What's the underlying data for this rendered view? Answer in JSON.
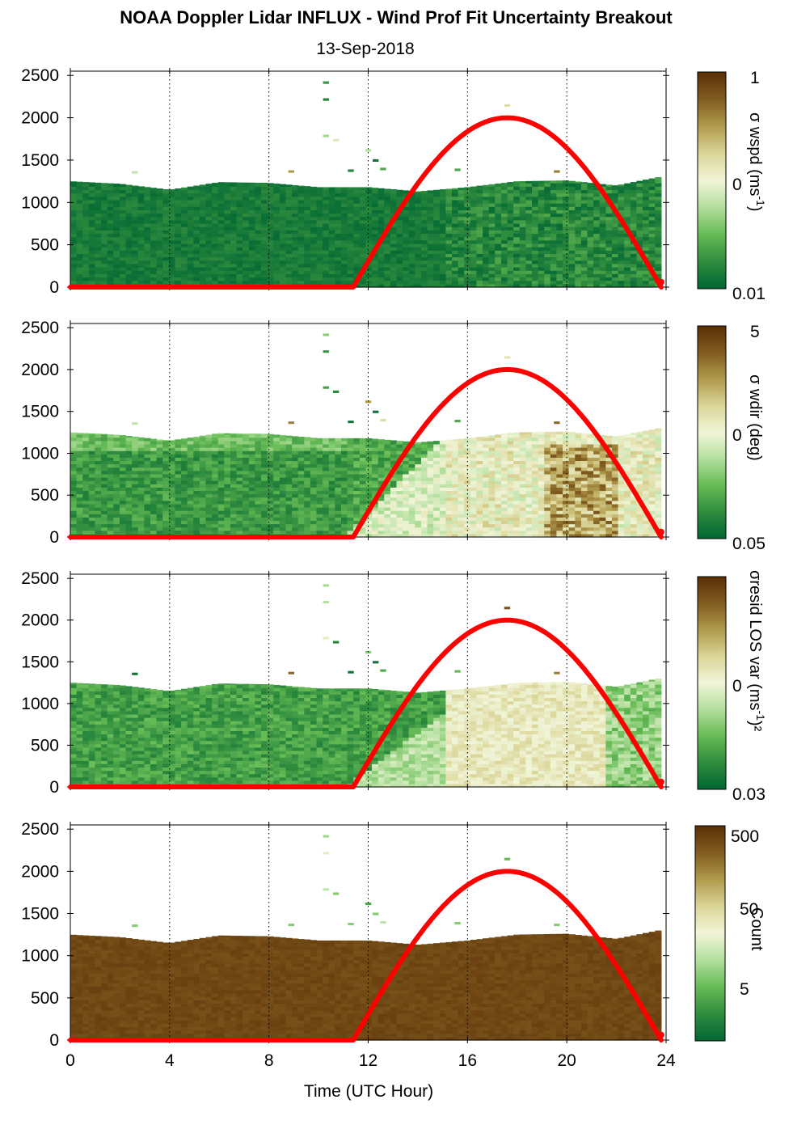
{
  "title": "NOAA Doppler Lidar INFLUX - Wind Prof Fit Uncertainty Breakout",
  "subtitle": "13-Sep-2018",
  "colors": {
    "sun_curve": "#ff0000",
    "colormap": [
      "#006633",
      "#2e8b3e",
      "#66bb55",
      "#b5e0a0",
      "#f1f5d8",
      "#dcd79b",
      "#b09a4c",
      "#7f5a1e",
      "#5a2e06"
    ]
  },
  "chart_data": [
    {
      "type": "heatmap",
      "panel": "wspd",
      "xlabel": "",
      "ylabel": "",
      "xlim": [
        0,
        24
      ],
      "ylim": [
        0,
        2550
      ],
      "x_ticks": [
        "0",
        "4",
        "8",
        "12",
        "16",
        "20",
        "24"
      ],
      "y_ticks": [
        "0",
        "500",
        "1000",
        "1500",
        "2000",
        "2500"
      ],
      "grid": "vertical dotted lines at 4-hour intervals",
      "colorbar": {
        "label": "σ wspd (ms⁻¹)",
        "label_main": "σ wspd (ms",
        "label_sup": "-1",
        "label_end": ")",
        "ticks": [
          "1",
          "0",
          "0.01"
        ],
        "scale": "log"
      },
      "sun_elevation_curve": {
        "x": [
          0,
          11.4,
          13,
          15,
          17.6,
          20,
          22,
          23.8
        ],
        "y": [
          0,
          0,
          720,
          1620,
          2000,
          1680,
          1000,
          60
        ]
      },
      "cloud_top_heights": {
        "x": [
          0,
          2,
          4,
          6,
          8,
          10,
          12,
          14,
          16,
          18,
          20,
          22,
          23.7
        ],
        "y": [
          1250,
          1220,
          1150,
          1240,
          1230,
          1180,
          1180,
          1130,
          1180,
          1250,
          1260,
          1200,
          1300
        ]
      }
    },
    {
      "type": "heatmap",
      "panel": "wdir",
      "xlabel": "",
      "ylabel": "",
      "xlim": [
        0,
        24
      ],
      "ylim": [
        0,
        2550
      ],
      "x_ticks": [
        "0",
        "4",
        "8",
        "12",
        "16",
        "20",
        "24"
      ],
      "y_ticks": [
        "0",
        "500",
        "1000",
        "1500",
        "2000",
        "2500"
      ],
      "grid": "vertical dotted lines at 4-hour intervals",
      "colorbar": {
        "label": "σ wdir (deg)",
        "label_main": "σ wdir (deg)",
        "label_sup": "",
        "label_end": "",
        "ticks": [
          "5",
          "0",
          "0.05"
        ],
        "scale": "log"
      },
      "sun_elevation_curve": {
        "x": [
          0,
          11.4,
          13,
          15,
          17.6,
          20,
          22,
          23.8
        ],
        "y": [
          0,
          0,
          720,
          1620,
          2000,
          1680,
          1000,
          60
        ]
      }
    },
    {
      "type": "heatmap",
      "panel": "resid_los_var",
      "xlabel": "",
      "ylabel": "",
      "xlim": [
        0,
        24
      ],
      "ylim": [
        0,
        2550
      ],
      "x_ticks": [
        "0",
        "4",
        "8",
        "12",
        "16",
        "20",
        "24"
      ],
      "y_ticks": [
        "0",
        "500",
        "1000",
        "1500",
        "2000",
        "2500"
      ],
      "grid": "vertical dotted lines at 4-hour intervals",
      "colorbar": {
        "label": "σresid LOS var (ms⁻¹)²",
        "label_main": "σresid LOS var (ms",
        "label_sup": "-1",
        "label_end": ")²",
        "ticks": [
          "0",
          "0.03"
        ],
        "scale": "log"
      },
      "sun_elevation_curve": {
        "x": [
          0,
          11.4,
          13,
          15,
          17.6,
          20,
          22,
          23.8
        ],
        "y": [
          0,
          0,
          720,
          1620,
          2000,
          1680,
          1000,
          60
        ]
      }
    },
    {
      "type": "heatmap",
      "panel": "count",
      "xlabel": "Time (UTC Hour)",
      "ylabel": "",
      "xlim": [
        0,
        24
      ],
      "ylim": [
        0,
        2550
      ],
      "x_ticks": [
        "0",
        "4",
        "8",
        "12",
        "16",
        "20",
        "24"
      ],
      "y_ticks": [
        "0",
        "500",
        "1000",
        "1500",
        "2000",
        "2500"
      ],
      "grid": "vertical dotted lines at 4-hour intervals",
      "colorbar": {
        "label": "Count",
        "label_main": "Count",
        "label_sup": "",
        "label_end": "",
        "ticks": [
          "500",
          "50",
          "5"
        ],
        "scale": "log"
      },
      "sun_elevation_curve": {
        "x": [
          0,
          11.4,
          13,
          15,
          17.6,
          20,
          22,
          23.8
        ],
        "y": [
          0,
          0,
          720,
          1620,
          2000,
          1680,
          1000,
          60
        ]
      }
    }
  ]
}
